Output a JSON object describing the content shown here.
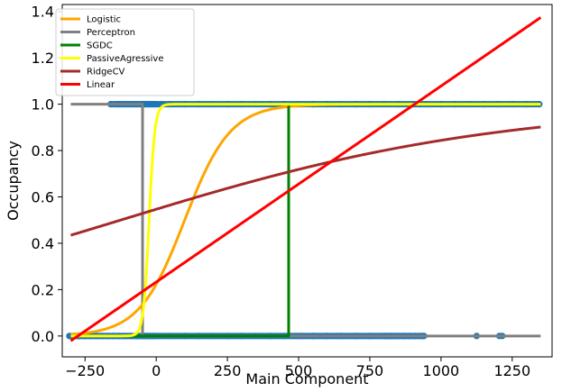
{
  "chart_data": {
    "type": "line",
    "xlabel": "Main Component",
    "ylabel": "Occupancy",
    "xlim": [
      -330,
      1390
    ],
    "ylim": [
      -0.09,
      1.43
    ],
    "x_ticks": [
      -250,
      0,
      250,
      500,
      750,
      1000,
      1250
    ],
    "x_tick_labels": [
      "−250",
      "0",
      "250",
      "500",
      "750",
      "1000",
      "1250"
    ],
    "y_ticks": [
      0.0,
      0.2,
      0.4,
      0.6,
      0.8,
      1.0,
      1.2,
      1.4
    ],
    "y_tick_labels": [
      "0.0",
      "0.2",
      "0.4",
      "0.6",
      "0.8",
      "1.0",
      "1.2",
      "1.4"
    ],
    "grid": false,
    "legend_placement": "top-left",
    "scatter_color": "#1f77b4",
    "scatter_points": {
      "y1_x": [
        -160,
        -140,
        -130,
        -120,
        -110,
        -100,
        -95,
        -85,
        -75,
        -65,
        -55,
        -45,
        -40,
        -35,
        -30,
        -25,
        -20,
        -15,
        -10,
        -5,
        0,
        20,
        50,
        100,
        150,
        200,
        250,
        300,
        350,
        400,
        450,
        500,
        550,
        600,
        650,
        700,
        750,
        800,
        850,
        900,
        950,
        1000,
        1050,
        1100,
        1150,
        1200,
        1250,
        1300,
        1345
      ],
      "y0_x": [
        -305,
        -290,
        -270,
        -250,
        -230,
        -210,
        -190,
        -170,
        -150,
        -130,
        -110,
        -90,
        -70,
        -50,
        -40,
        -30,
        -20,
        -10,
        0,
        50,
        100,
        150,
        200,
        250,
        300,
        350,
        400,
        450,
        500,
        550,
        600,
        650,
        700,
        750,
        800,
        805,
        815,
        825,
        835,
        850,
        870,
        890,
        910,
        930,
        940,
        1125,
        1205,
        1215
      ]
    },
    "series": [
      {
        "name": "Logistic",
        "color": "#FFA500",
        "kind": "logistic",
        "x0": 100,
        "k": 0.0125
      },
      {
        "name": "Perceptron",
        "color": "#808080",
        "kind": "step",
        "threshold": -48
      },
      {
        "name": "SGDC",
        "color": "#008000",
        "kind": "step",
        "threshold": 465
      },
      {
        "name": "PassiveAgressive",
        "color": "#FFFF00",
        "kind": "logistic",
        "x0": -25,
        "k": 0.1
      },
      {
        "name": "RidgeCV",
        "color": "#A52A2A",
        "kind": "logistic",
        "x0": -125,
        "k": 0.0015
      },
      {
        "name": "Linear",
        "color": "#FF0000",
        "kind": "linear",
        "slope": 0.0008455,
        "intercept": 0.2327
      }
    ],
    "x_range": [
      -300,
      1350
    ]
  }
}
